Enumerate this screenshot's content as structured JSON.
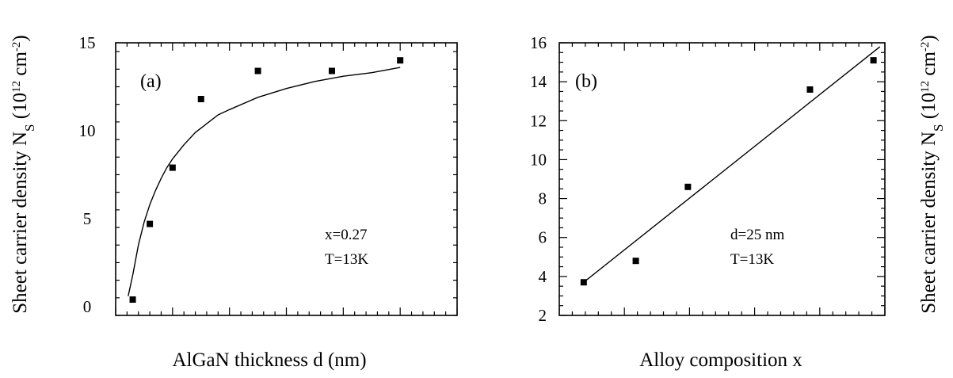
{
  "chart_data": [
    {
      "type": "scatter",
      "panel_label": "(a)",
      "xlabel": "AlGaN thickness d (nm)",
      "ylabel": "Sheet carrier density N",
      "ylabel_sub": "S",
      "ylabel_units_prefix": "(10",
      "ylabel_units_exp1": "12",
      "ylabel_units_mid": " cm",
      "ylabel_units_exp2": "-2",
      "ylabel_units_suffix": ")",
      "annotation_lines": [
        "x=0.27",
        "T=13K"
      ],
      "xlim": [
        0,
        60
      ],
      "ylim": [
        -0.5,
        15
      ],
      "y_ticks": [
        0,
        5,
        10,
        15
      ],
      "y_tick_labels": [
        "0",
        "5",
        "10",
        "15"
      ],
      "x_major_ticks": [
        0,
        10,
        20,
        30,
        40,
        50,
        60
      ],
      "x_minor_step": 2,
      "y_minor_step": 1,
      "series": [
        {
          "kind": "points",
          "x": [
            3,
            6,
            10,
            15,
            25,
            38,
            50
          ],
          "y": [
            0.4,
            4.7,
            7.9,
            11.8,
            13.4,
            13.4,
            14.0
          ]
        },
        {
          "kind": "curve",
          "x": [
            2.2,
            3,
            4,
            5,
            6,
            7,
            8,
            9,
            10,
            12,
            14,
            16,
            18,
            20,
            25,
            30,
            35,
            40,
            45,
            50
          ],
          "y": [
            0.6,
            1.8,
            3.5,
            4.8,
            5.8,
            6.6,
            7.3,
            7.9,
            8.4,
            9.2,
            9.9,
            10.4,
            10.9,
            11.2,
            11.9,
            12.4,
            12.8,
            13.1,
            13.3,
            13.6
          ]
        }
      ]
    },
    {
      "type": "scatter",
      "panel_label": "(b)",
      "xlabel": "Alloy composition x",
      "ylabel": "Sheet carrier density N",
      "ylabel_sub": "S",
      "ylabel_units_prefix": "(10",
      "ylabel_units_exp1": "12",
      "ylabel_units_mid": " cm",
      "ylabel_units_exp2": "-2",
      "ylabel_units_suffix": ")",
      "annotation_lines": [
        "d=25 nm",
        "T=13K"
      ],
      "xlim": [
        0,
        1
      ],
      "ylim": [
        2,
        16
      ],
      "y_ticks": [
        2,
        4,
        6,
        8,
        10,
        12,
        14,
        16
      ],
      "y_tick_labels": [
        "2",
        "4",
        "6",
        "8",
        "10",
        "12",
        "14",
        "16"
      ],
      "x_major_ticks": [
        0,
        0.2,
        0.4,
        0.6,
        0.8,
        1.0
      ],
      "x_minor_step": 0.04,
      "y_minor_step": 0.5,
      "series": [
        {
          "kind": "points",
          "x": [
            0.075,
            0.235,
            0.395,
            0.77,
            0.965
          ],
          "y": [
            3.7,
            4.8,
            8.6,
            13.6,
            15.1
          ]
        },
        {
          "kind": "curve",
          "x": [
            0.075,
            0.985
          ],
          "y": [
            3.7,
            15.8
          ]
        }
      ]
    }
  ]
}
